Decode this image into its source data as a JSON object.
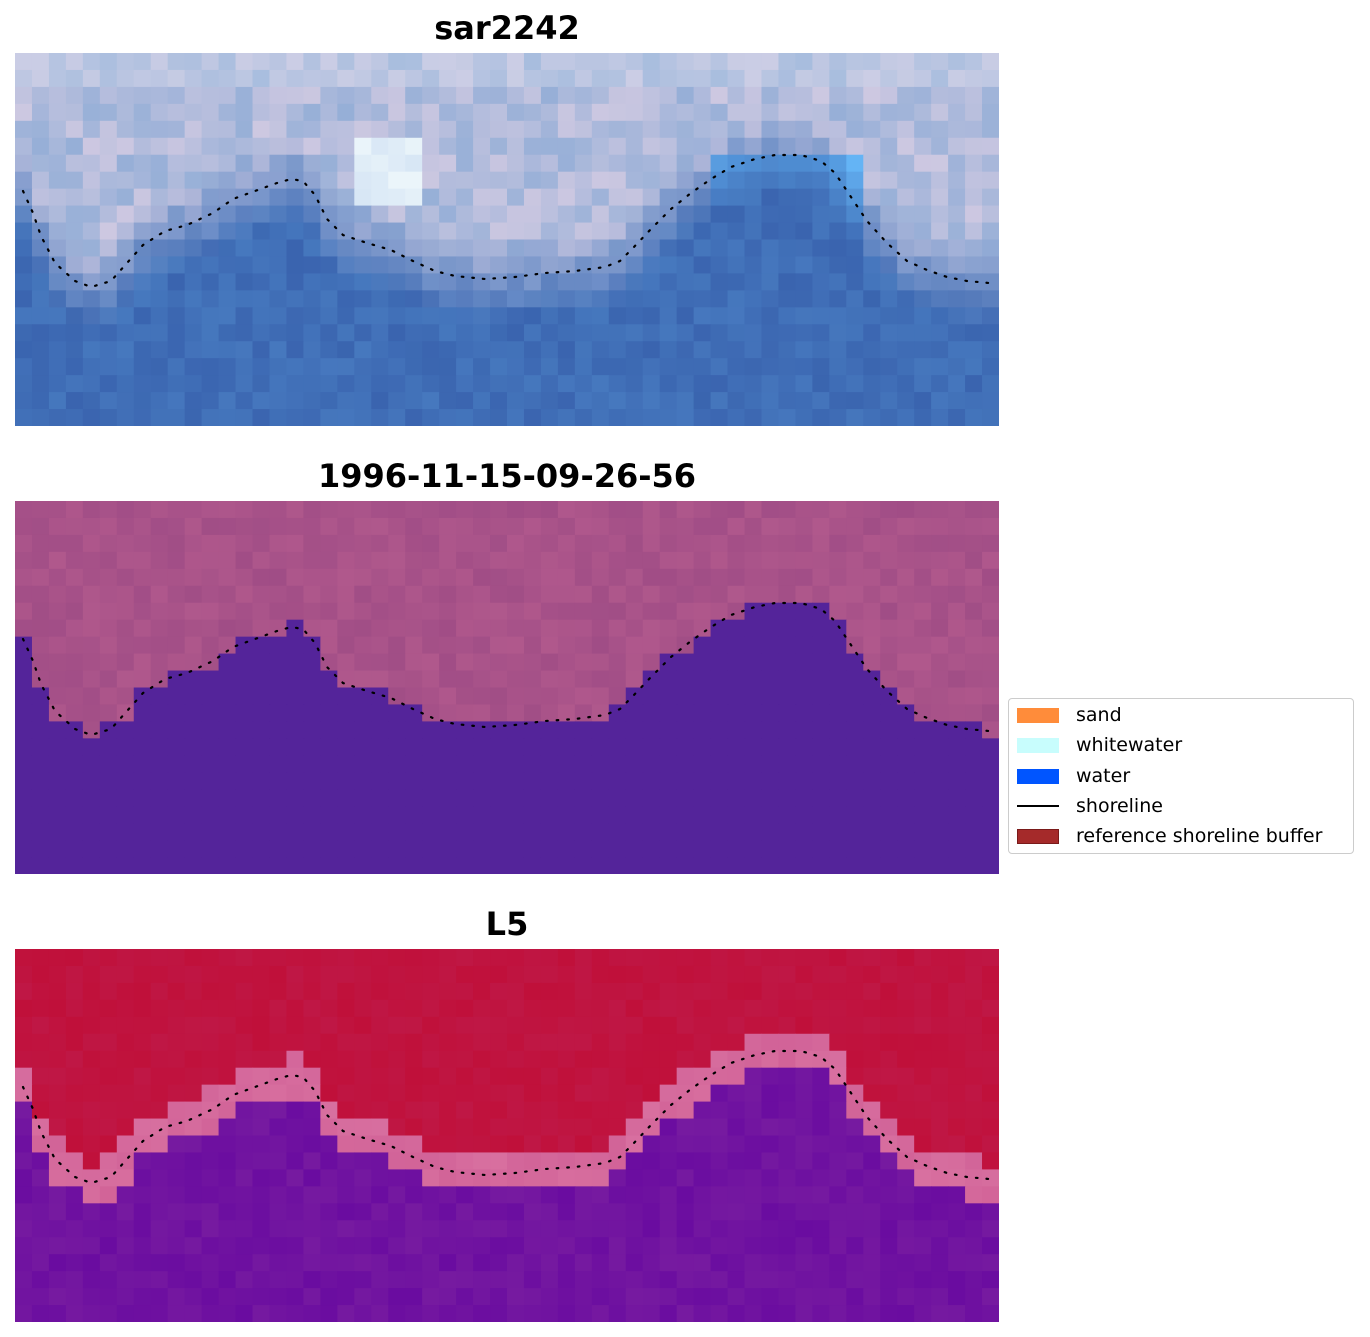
{
  "chart_data": {
    "type": "heatmap",
    "panels": [
      {
        "id": "rgb",
        "title": "sar2242"
      },
      {
        "id": "classified",
        "title": "1996-11-15-09-26-56"
      },
      {
        "id": "index",
        "title": "L5"
      }
    ],
    "grid": "off",
    "axes": "off",
    "legend_placement": "right",
    "legend": [
      {
        "label": "sand",
        "color": "#ff8c3a",
        "kind": "patch"
      },
      {
        "label": "whitewater",
        "color": "#c8fdfd",
        "kind": "patch"
      },
      {
        "label": "water",
        "color": "#0055ff",
        "kind": "patch"
      },
      {
        "label": "shoreline",
        "color": "#000000",
        "kind": "line"
      },
      {
        "label": "reference shoreline buffer",
        "color": "#a52a2a",
        "kind": "patch"
      }
    ],
    "colors": {
      "water_class": "#54249a",
      "land_class": "#b0588c",
      "index_high": "#c0103a",
      "index_low": "#6a0ca0",
      "buffer": "#d870a0",
      "shoreline": "#000000"
    }
  }
}
